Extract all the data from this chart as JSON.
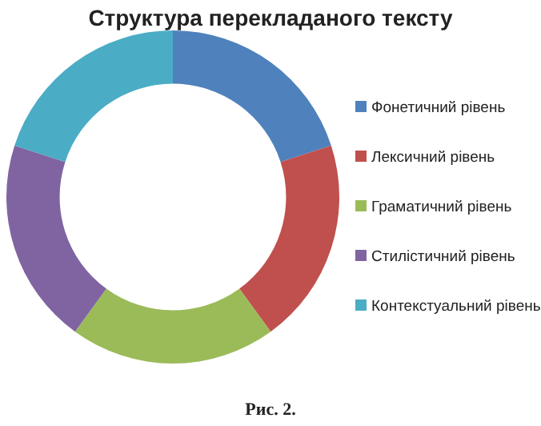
{
  "chart_data": {
    "type": "donut",
    "title": "Структура перекладаного тексту",
    "categories": [
      "Фонетичний рівень",
      "Лексичний рівень",
      "Граматичний рівень",
      "Стилістичний рівень",
      "Контекстуальний рівень"
    ],
    "values": [
      20,
      20,
      20,
      20,
      20
    ],
    "colors": [
      "#4f81bd",
      "#c0504d",
      "#9bbb59",
      "#8064a2",
      "#4bacc6"
    ],
    "legend": "right",
    "annotations": [
      "Рис. 2."
    ]
  }
}
